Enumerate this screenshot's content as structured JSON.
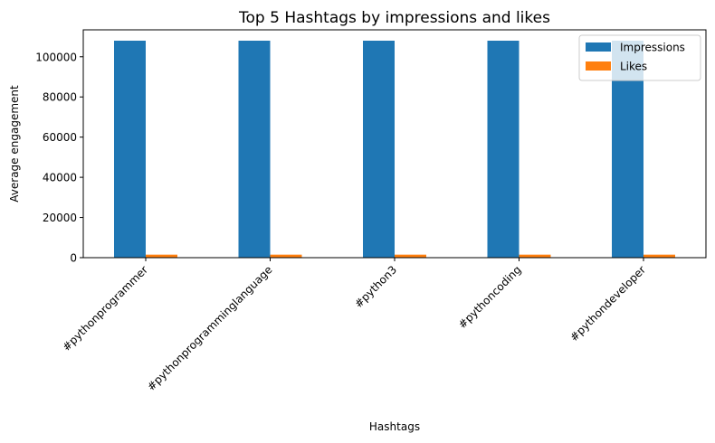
{
  "chart_data": {
    "type": "bar",
    "title": "Top 5 Hashtags by impressions and likes",
    "xlabel": "Hashtags",
    "ylabel": "Average engagement",
    "categories": [
      "#pythonprogrammer",
      "#pythonprogramminglanguage",
      "#python3",
      "#pythoncoding",
      "#pythondeveloper"
    ],
    "series": [
      {
        "name": "Impressions",
        "color": "#1f77b4",
        "values": [
          108000,
          108000,
          108000,
          108000,
          108000
        ]
      },
      {
        "name": "Likes",
        "color": "#ff7f0e",
        "values": [
          1500,
          1500,
          1500,
          1500,
          1500
        ]
      }
    ],
    "ylim": [
      0,
      113400
    ],
    "yticks": [
      0,
      20000,
      40000,
      60000,
      80000,
      100000
    ],
    "grid": false,
    "legend_position": "top-right"
  }
}
